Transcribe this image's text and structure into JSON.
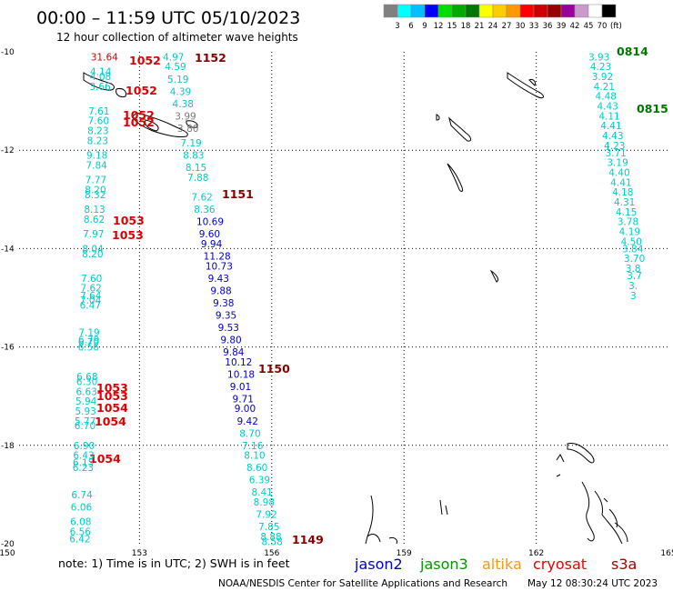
{
  "title": "00:00 – 11:59 UTC 05/10/2023",
  "subtitle": "12 hour collection of altimeter wave heights",
  "color_scale": {
    "colors": [
      "#808080",
      "#00ffff",
      "#00bfff",
      "#0000ff",
      "#00dd00",
      "#00aa00",
      "#007700",
      "#ffff00",
      "#ffcc00",
      "#ff9900",
      "#ff0000",
      "#cc0000",
      "#990000",
      "#990099",
      "#cc99cc",
      "#ffffff",
      "#000000"
    ],
    "labels": [
      "3",
      "6",
      "9",
      "12",
      "15",
      "18",
      "21",
      "24",
      "27",
      "30",
      "33",
      "36",
      "39",
      "42",
      "45",
      "70"
    ],
    "unit": "(ft)"
  },
  "axes": {
    "lon_ticks": [
      "150",
      "153",
      "156",
      "159",
      "162",
      "165"
    ],
    "lat_ticks": [
      "-10",
      "-12",
      "-14",
      "-16",
      "-18",
      "-20"
    ],
    "lon_range": [
      150,
      165
    ],
    "lat_range": [
      -20,
      -10
    ]
  },
  "footer": {
    "note": "note:  1) Time is in UTC;  2) SWH is in feet",
    "credit": "NOAA/NESDIS Center for Satellite Applications and Research",
    "timestamp": "May 12 08:30:24 UTC 2023"
  },
  "legend_missions": [
    {
      "name": "jason2",
      "color": "#0000cc"
    },
    {
      "name": "jason3",
      "color": "#009900"
    },
    {
      "name": "altika",
      "color": "#ff9900"
    },
    {
      "name": "cryosat",
      "color": "#ee0000"
    },
    {
      "name": "s3a",
      "color": "#aa0000"
    }
  ],
  "track_colors": {
    "cyan": "#00cccc",
    "blue": "#0000cc",
    "gray": "#777777"
  },
  "tracks": [
    {
      "id": "track-far-west",
      "points": [
        {
          "lon": 150.1,
          "lat": -10.1,
          "v": "31.64",
          "c": "red"
        },
        {
          "lon": 150.1,
          "lat": -10.4,
          "v": "4.14",
          "c": "cyan"
        },
        {
          "lon": 150.1,
          "lat": -10.5,
          "v": "4.08",
          "c": "cyan"
        },
        {
          "lon": 150.1,
          "lat": -10.7,
          "v": "3.66",
          "c": "cyan"
        },
        {
          "lon": 150.1,
          "lat": -11.2,
          "v": "7.61",
          "c": "cyan"
        },
        {
          "lon": 150.1,
          "lat": -11.4,
          "v": "7.60",
          "c": "cyan"
        },
        {
          "lon": 150.1,
          "lat": -11.6,
          "v": "8.23",
          "c": "cyan"
        },
        {
          "lon": 150.1,
          "lat": -11.8,
          "v": "8.23",
          "c": "cyan"
        },
        {
          "lon": 150.1,
          "lat": -12.1,
          "v": "9.18",
          "c": "cyan"
        },
        {
          "lon": 150.1,
          "lat": -12.3,
          "v": "7.84",
          "c": "cyan"
        },
        {
          "lon": 150.1,
          "lat": -12.6,
          "v": "7.77",
          "c": "cyan"
        },
        {
          "lon": 150.1,
          "lat": -12.8,
          "v": "8.20",
          "c": "cyan"
        },
        {
          "lon": 150.1,
          "lat": -12.9,
          "v": "8.32",
          "c": "cyan"
        },
        {
          "lon": 150.1,
          "lat": -13.2,
          "v": "8.13",
          "c": "cyan"
        },
        {
          "lon": 150.1,
          "lat": -13.4,
          "v": "8.62",
          "c": "cyan"
        },
        {
          "lon": 150.1,
          "lat": -13.7,
          "v": "7.97",
          "c": "cyan"
        },
        {
          "lon": 150.1,
          "lat": -14.0,
          "v": "8.04",
          "c": "cyan"
        },
        {
          "lon": 150.1,
          "lat": -14.1,
          "v": "8.20",
          "c": "cyan"
        },
        {
          "lon": 150.1,
          "lat": -14.6,
          "v": "7.60",
          "c": "cyan"
        },
        {
          "lon": 150.1,
          "lat": -14.8,
          "v": "7.62",
          "c": "cyan"
        },
        {
          "lon": 150.1,
          "lat": -14.95,
          "v": "7.64",
          "c": "cyan"
        },
        {
          "lon": 150.1,
          "lat": -15.05,
          "v": "7.04",
          "c": "cyan"
        },
        {
          "lon": 150.1,
          "lat": -15.15,
          "v": "6.47",
          "c": "cyan"
        },
        {
          "lon": 150.1,
          "lat": -15.7,
          "v": "7.19",
          "c": "cyan"
        },
        {
          "lon": 150.1,
          "lat": -15.85,
          "v": "6.79",
          "c": "cyan"
        },
        {
          "lon": 150.1,
          "lat": -15.9,
          "v": "6.70",
          "c": "cyan"
        },
        {
          "lon": 150.1,
          "lat": -16.0,
          "v": "6.56",
          "c": "cyan"
        },
        {
          "lon": 150.1,
          "lat": -16.6,
          "v": "6.68",
          "c": "cyan"
        },
        {
          "lon": 150.1,
          "lat": -16.7,
          "v": "6.30",
          "c": "cyan"
        },
        {
          "lon": 150.1,
          "lat": -16.9,
          "v": "6.63",
          "c": "cyan"
        },
        {
          "lon": 150.1,
          "lat": -17.1,
          "v": "5.94",
          "c": "cyan"
        },
        {
          "lon": 150.1,
          "lat": -17.3,
          "v": "5.93",
          "c": "cyan"
        },
        {
          "lon": 150.1,
          "lat": -17.5,
          "v": "5.77",
          "c": "cyan"
        },
        {
          "lon": 150.1,
          "lat": -17.6,
          "v": "6.70",
          "c": "cyan"
        },
        {
          "lon": 150.1,
          "lat": -18.0,
          "v": "6.90",
          "c": "cyan"
        },
        {
          "lon": 150.1,
          "lat": -18.2,
          "v": "6.43",
          "c": "cyan"
        },
        {
          "lon": 150.1,
          "lat": -18.35,
          "v": "6.15",
          "c": "cyan"
        },
        {
          "lon": 150.1,
          "lat": -18.45,
          "v": "6.23",
          "c": "cyan"
        },
        {
          "lon": 150.1,
          "lat": -19.0,
          "v": "6.74",
          "c": "cyan"
        },
        {
          "lon": 150.1,
          "lat": -19.25,
          "v": "6.06",
          "c": "cyan"
        },
        {
          "lon": 150.1,
          "lat": -19.55,
          "v": "6.08",
          "c": "cyan"
        },
        {
          "lon": 150.1,
          "lat": -19.75,
          "v": "6.56",
          "c": "cyan"
        },
        {
          "lon": 150.1,
          "lat": -19.9,
          "v": "6.42",
          "c": "cyan"
        }
      ]
    },
    {
      "id": "track-central",
      "points": [
        {
          "lon": 153.3,
          "lat": -10.1,
          "v": "4.97",
          "c": "cyan"
        },
        {
          "lon": 153.3,
          "lat": -10.3,
          "v": "4.59",
          "c": "cyan"
        },
        {
          "lon": 153.3,
          "lat": -10.55,
          "v": "5.19",
          "c": "cyan"
        },
        {
          "lon": 153.3,
          "lat": -10.8,
          "v": "4.39",
          "c": "cyan"
        },
        {
          "lon": 153.3,
          "lat": -11.05,
          "v": "4.38",
          "c": "cyan"
        },
        {
          "lon": 153.3,
          "lat": -11.3,
          "v": "3.99",
          "c": "gray"
        },
        {
          "lon": 153.3,
          "lat": -11.55,
          "v": "3.80",
          "c": "gray"
        },
        {
          "lon": 153.3,
          "lat": -11.85,
          "v": "7.19",
          "c": "cyan"
        },
        {
          "lon": 153.3,
          "lat": -12.1,
          "v": "8.83",
          "c": "cyan"
        },
        {
          "lon": 153.3,
          "lat": -12.35,
          "v": "8.15",
          "c": "cyan"
        },
        {
          "lon": 153.3,
          "lat": -12.55,
          "v": "7.88",
          "c": "cyan"
        },
        {
          "lon": 153.3,
          "lat": -12.95,
          "v": "7.62",
          "c": "cyan"
        },
        {
          "lon": 153.3,
          "lat": -13.2,
          "v": "8.36",
          "c": "cyan"
        },
        {
          "lon": 153.3,
          "lat": -13.45,
          "v": "10.69",
          "c": "blue"
        },
        {
          "lon": 153.3,
          "lat": -13.7,
          "v": "9.60",
          "c": "blue"
        },
        {
          "lon": 153.3,
          "lat": -13.9,
          "v": "9.94",
          "c": "blue"
        },
        {
          "lon": 153.3,
          "lat": -14.15,
          "v": "11.28",
          "c": "blue"
        },
        {
          "lon": 153.3,
          "lat": -14.35,
          "v": "10.73",
          "c": "blue"
        },
        {
          "lon": 153.3,
          "lat": -14.6,
          "v": "9.43",
          "c": "blue"
        },
        {
          "lon": 153.3,
          "lat": -14.85,
          "v": "9.88",
          "c": "blue"
        },
        {
          "lon": 153.3,
          "lat": -15.1,
          "v": "9.38",
          "c": "blue"
        },
        {
          "lon": 153.3,
          "lat": -15.35,
          "v": "9.35",
          "c": "blue"
        },
        {
          "lon": 153.3,
          "lat": -15.6,
          "v": "9.53",
          "c": "blue"
        },
        {
          "lon": 153.3,
          "lat": -15.85,
          "v": "9.80",
          "c": "blue"
        },
        {
          "lon": 153.3,
          "lat": -16.1,
          "v": "9.84",
          "c": "blue"
        },
        {
          "lon": 153.3,
          "lat": -16.3,
          "v": "10.12",
          "c": "blue"
        },
        {
          "lon": 153.3,
          "lat": -16.55,
          "v": "10.18",
          "c": "blue"
        },
        {
          "lon": 153.3,
          "lat": -16.8,
          "v": "9.01",
          "c": "blue"
        },
        {
          "lon": 153.3,
          "lat": -17.05,
          "v": "9.71",
          "c": "blue"
        },
        {
          "lon": 153.3,
          "lat": -17.25,
          "v": "9.00",
          "c": "blue"
        },
        {
          "lon": 153.3,
          "lat": -17.5,
          "v": "9.42",
          "c": "blue"
        },
        {
          "lon": 153.3,
          "lat": -17.75,
          "v": "8.70",
          "c": "cyan"
        },
        {
          "lon": 153.3,
          "lat": -18.0,
          "v": "7.16",
          "c": "cyan"
        },
        {
          "lon": 153.3,
          "lat": -18.2,
          "v": "8.10",
          "c": "cyan"
        },
        {
          "lon": 153.3,
          "lat": -18.45,
          "v": "8.60",
          "c": "cyan"
        },
        {
          "lon": 153.3,
          "lat": -18.7,
          "v": "6.39",
          "c": "cyan"
        },
        {
          "lon": 153.3,
          "lat": -18.95,
          "v": "8.41",
          "c": "cyan"
        },
        {
          "lon": 153.3,
          "lat": -19.15,
          "v": "8.98",
          "c": "cyan"
        },
        {
          "lon": 153.3,
          "lat": -19.4,
          "v": "7.92",
          "c": "cyan"
        },
        {
          "lon": 153.3,
          "lat": -19.65,
          "v": "7.85",
          "c": "cyan"
        },
        {
          "lon": 153.3,
          "lat": -19.85,
          "v": "8.88",
          "c": "cyan"
        },
        {
          "lon": 153.3,
          "lat": -19.95,
          "v": "8.58",
          "c": "cyan"
        }
      ]
    },
    {
      "id": "track-east",
      "points": [
        {
          "lon": 163.8,
          "lat": -10.1,
          "v": "3.93",
          "c": "cyan"
        },
        {
          "lon": 163.8,
          "lat": -10.3,
          "v": "4.23",
          "c": "cyan"
        },
        {
          "lon": 163.8,
          "lat": -10.5,
          "v": "3.92",
          "c": "cyan"
        },
        {
          "lon": 163.8,
          "lat": -10.7,
          "v": "4.21",
          "c": "cyan"
        },
        {
          "lon": 163.8,
          "lat": -10.9,
          "v": "4.48",
          "c": "cyan"
        },
        {
          "lon": 163.8,
          "lat": -11.1,
          "v": "4.43",
          "c": "cyan"
        },
        {
          "lon": 163.8,
          "lat": -11.3,
          "v": "4.11",
          "c": "cyan"
        },
        {
          "lon": 163.8,
          "lat": -11.5,
          "v": "4.41",
          "c": "cyan"
        },
        {
          "lon": 163.8,
          "lat": -11.7,
          "v": "4.43",
          "c": "cyan"
        },
        {
          "lon": 163.8,
          "lat": -11.9,
          "v": "4.23",
          "c": "cyan"
        },
        {
          "lon": 163.8,
          "lat": -12.05,
          "v": "3.71",
          "c": "cyan"
        },
        {
          "lon": 163.8,
          "lat": -12.25,
          "v": "3.19",
          "c": "cyan"
        },
        {
          "lon": 163.8,
          "lat": -12.45,
          "v": "4.40",
          "c": "cyan"
        },
        {
          "lon": 163.8,
          "lat": -12.65,
          "v": "4.41",
          "c": "cyan"
        },
        {
          "lon": 163.8,
          "lat": -12.85,
          "v": "4.18",
          "c": "cyan"
        },
        {
          "lon": 163.8,
          "lat": -13.05,
          "v": "4.31",
          "c": "cyan"
        },
        {
          "lon": 163.8,
          "lat": -13.25,
          "v": "4.15",
          "c": "cyan"
        },
        {
          "lon": 163.8,
          "lat": -13.45,
          "v": "3.78",
          "c": "cyan"
        },
        {
          "lon": 163.8,
          "lat": -13.65,
          "v": "4.19",
          "c": "cyan"
        },
        {
          "lon": 163.8,
          "lat": -13.85,
          "v": "4.50",
          "c": "cyan"
        },
        {
          "lon": 163.8,
          "lat": -14.0,
          "v": "3.84",
          "c": "cyan"
        },
        {
          "lon": 163.8,
          "lat": -14.2,
          "v": "3.70",
          "c": "cyan"
        },
        {
          "lon": 163.8,
          "lat": -14.4,
          "v": "3.8",
          "c": "cyan"
        },
        {
          "lon": 163.8,
          "lat": -14.55,
          "v": "3.7",
          "c": "cyan"
        },
        {
          "lon": 163.8,
          "lat": -14.75,
          "v": "3.",
          "c": "cyan"
        },
        {
          "lon": 163.8,
          "lat": -14.95,
          "v": "3",
          "c": "cyan"
        }
      ]
    }
  ],
  "ship_labels": [
    {
      "v": "1052",
      "c": "#dd0000"
    },
    {
      "v": "1152",
      "c": "#880000"
    },
    {
      "v": "1052",
      "c": "#dd0000"
    },
    {
      "v": "1052",
      "c": "#dd0000"
    },
    {
      "v": "1052",
      "c": "#dd0000"
    },
    {
      "v": "1151",
      "c": "#880000"
    },
    {
      "v": "1053",
      "c": "#dd0000"
    },
    {
      "v": "1053",
      "c": "#dd0000"
    },
    {
      "v": "1150",
      "c": "#880000"
    },
    {
      "v": "1053",
      "c": "#dd0000"
    },
    {
      "v": "1053",
      "c": "#dd0000"
    },
    {
      "v": "1054",
      "c": "#dd0000"
    },
    {
      "v": "1054",
      "c": "#dd0000"
    },
    {
      "v": "1054",
      "c": "#dd0000"
    },
    {
      "v": "1149",
      "c": "#880000"
    },
    {
      "v": "0814",
      "c": "#007700"
    },
    {
      "v": "0815",
      "c": "#007700"
    }
  ]
}
